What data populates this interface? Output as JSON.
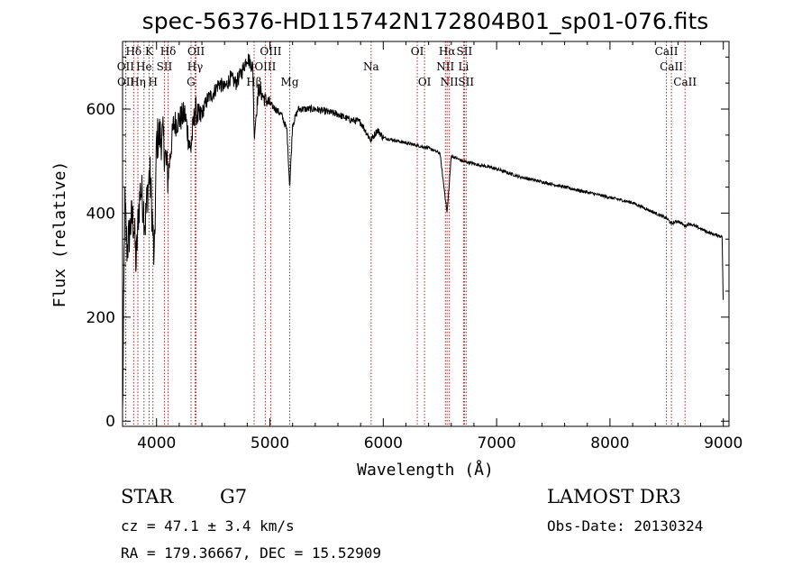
{
  "chart_data": {
    "type": "line",
    "title": "spec-56376-HD115742N172804B01_sp01-076.fits",
    "xlabel": "Wavelength (Å)",
    "ylabel": "Flux (relative)",
    "xlim": [
      3700,
      9050
    ],
    "ylim": [
      -10,
      730
    ],
    "xticks": [
      4000,
      5000,
      6000,
      7000,
      8000,
      9000
    ],
    "yticks": [
      0,
      200,
      400,
      600
    ],
    "line_color": "#000000",
    "marker_color": "#b22222",
    "spectrum_anchor": {
      "x": [
        3700,
        3720,
        3740,
        3760,
        3780,
        3800,
        3820,
        3840,
        3860,
        3880,
        3900,
        3920,
        3940,
        3960,
        3980,
        4000,
        4030,
        4060,
        4100,
        4150,
        4200,
        4250,
        4300,
        4340,
        4380,
        4450,
        4500,
        4550,
        4600,
        4650,
        4700,
        4750,
        4800,
        4850,
        4861,
        4900,
        4950,
        5000,
        5050,
        5100,
        5150,
        5175,
        5200,
        5250,
        5300,
        5400,
        5500,
        5600,
        5700,
        5800,
        5890,
        5950,
        6000,
        6100,
        6200,
        6300,
        6400,
        6500,
        6563,
        6600,
        6700,
        6800,
        6900,
        7000,
        7200,
        7400,
        7600,
        7800,
        8000,
        8200,
        8400,
        8500,
        8542,
        8600,
        8662,
        8700,
        8800,
        8900,
        8990,
        9000
      ],
      "y": [
        10,
        420,
        330,
        360,
        390,
        380,
        300,
        400,
        450,
        420,
        380,
        440,
        480,
        400,
        300,
        540,
        550,
        540,
        470,
        570,
        580,
        590,
        520,
        600,
        580,
        620,
        630,
        650,
        640,
        660,
        650,
        670,
        700,
        680,
        550,
        640,
        620,
        610,
        600,
        590,
        560,
        450,
        570,
        600,
        600,
        600,
        595,
        590,
        580,
        575,
        540,
        560,
        545,
        540,
        535,
        530,
        525,
        515,
        400,
        510,
        500,
        495,
        490,
        485,
        470,
        460,
        450,
        440,
        430,
        420,
        400,
        390,
        380,
        385,
        375,
        380,
        370,
        360,
        355,
        200
      ]
    },
    "lines": [
      {
        "label": "Hδ",
        "x": 3798,
        "row": 1
      },
      {
        "label": "K",
        "x": 3934,
        "row": 1
      },
      {
        "label": "Hδ",
        "x": 4102,
        "row": 1
      },
      {
        "label": "OII",
        "x": 4349,
        "row": 1
      },
      {
        "label": "OIII",
        "x": 5007,
        "row": 1
      },
      {
        "label": "OI",
        "x": 6300,
        "row": 1
      },
      {
        "label": "Hα",
        "x": 6563,
        "row": 1
      },
      {
        "label": "SII",
        "x": 6716,
        "row": 1
      },
      {
        "label": "CaII",
        "x": 8498,
        "row": 1
      },
      {
        "label": "OII",
        "x": 3727,
        "row": 2
      },
      {
        "label": "He",
        "x": 3889,
        "row": 2
      },
      {
        "label": "SII",
        "x": 4069,
        "row": 2
      },
      {
        "label": "Hγ",
        "x": 4340,
        "row": 2
      },
      {
        "label": "OIII",
        "x": 4959,
        "row": 2
      },
      {
        "label": "Na",
        "x": 5893,
        "row": 2
      },
      {
        "label": "NII",
        "x": 6548,
        "row": 2
      },
      {
        "label": "Li",
        "x": 6708,
        "row": 2
      },
      {
        "label": "CaII",
        "x": 8542,
        "row": 2
      },
      {
        "label": "OII",
        "x": 3729,
        "row": 3
      },
      {
        "label": "Hη",
        "x": 3835,
        "row": 3
      },
      {
        "label": "H",
        "x": 3968,
        "row": 3
      },
      {
        "label": "G",
        "x": 4304,
        "row": 3
      },
      {
        "label": "Hβ",
        "x": 4861,
        "row": 3
      },
      {
        "label": "Mg",
        "x": 5175,
        "row": 3
      },
      {
        "label": "OI",
        "x": 6364,
        "row": 3
      },
      {
        "label": "NII",
        "x": 6583,
        "row": 3
      },
      {
        "label": "SII",
        "x": 6731,
        "row": 3
      },
      {
        "label": "CaII",
        "x": 8662,
        "row": 3
      }
    ]
  },
  "info": {
    "object_class": "STAR",
    "subclass": "G7",
    "survey": "LAMOST DR3",
    "redshift": "cz = 47.1 ± 3.4 km/s",
    "obs_date": "Obs-Date: 20130324",
    "coords": "RA = 179.36667, DEC =  15.52909"
  }
}
